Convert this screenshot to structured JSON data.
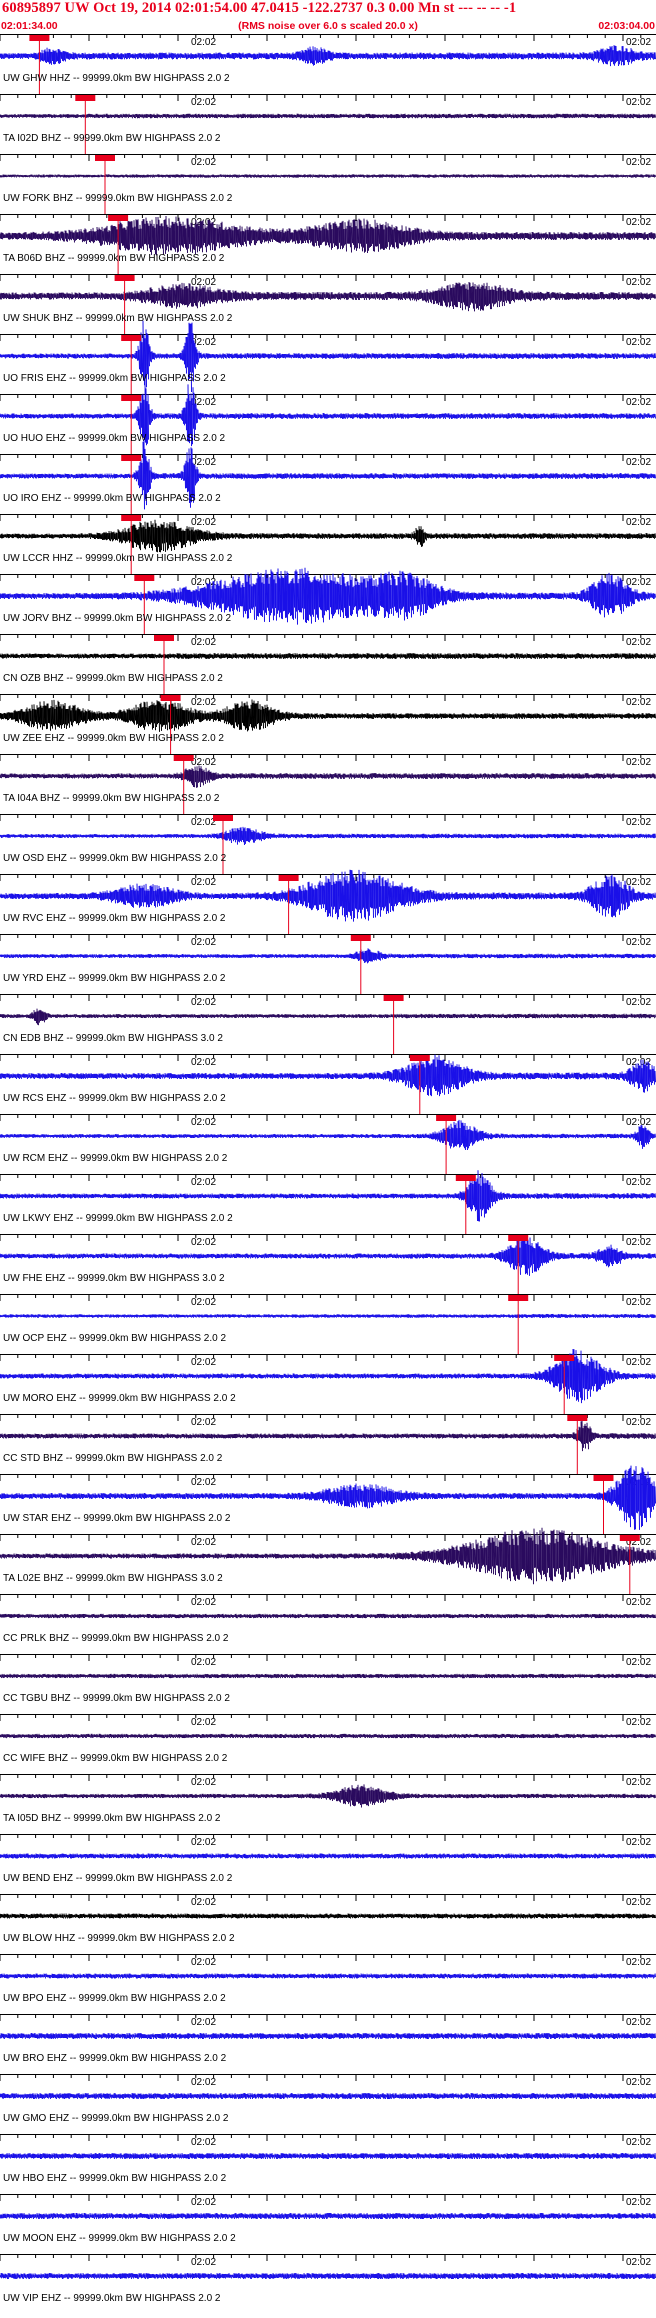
{
  "header": {
    "title": "60895897 UW Oct 19, 2014 02:01:54.00   47.0415 -122.2737  0.3 0.00 Mn st --- -- --   -1",
    "subtitle": "(RMS noise over 6.0 s scaled 20.0 x)",
    "start_time": "02:01:34.00",
    "end_time": "02:03:04.00"
  },
  "time_mark": "02:02",
  "colors": {
    "title": "#e8001c",
    "pick": "#e8001c",
    "blue": "#1a10e8",
    "purple": "#2a0a5e",
    "black": "#000000",
    "grid": "#000000"
  },
  "traces": [
    {
      "label": "UW GHW HHZ -- 99999.0km BW  HIGHPASS  2.0  2",
      "color": "blue",
      "amp": 3.0,
      "pick": 0.06,
      "events": [
        [
          0.08,
          0.02,
          5
        ],
        [
          0.48,
          0.02,
          6
        ],
        [
          0.94,
          0.03,
          7
        ]
      ]
    },
    {
      "label": "TA I02D BHZ -- 99999.0km BW  HIGHPASS  2.0  2",
      "color": "purple",
      "amp": 2.0,
      "pick": 0.13,
      "events": []
    },
    {
      "label": "UW FORK BHZ -- 99999.0km BW  HIGHPASS  2.0  2",
      "color": "purple",
      "amp": 1.5,
      "pick": 0.16,
      "events": []
    },
    {
      "label": "TA B06D BHZ -- 99999.0km BW  HIGHPASS  2.0  2",
      "color": "purple",
      "amp": 3.5,
      "pick": 0.18,
      "events": [
        [
          0.26,
          0.12,
          14
        ],
        [
          0.55,
          0.08,
          12
        ]
      ]
    },
    {
      "label": "UW SHUK BHZ -- 99999.0km BW  HIGHPASS  2.0  2",
      "color": "purple",
      "amp": 3.5,
      "pick": 0.19,
      "events": [
        [
          0.28,
          0.06,
          8
        ],
        [
          0.72,
          0.06,
          10
        ]
      ]
    },
    {
      "label": "UO FRIS EHZ -- 99999.0km BW  HIGHPASS  2.0  2",
      "color": "blue",
      "amp": 2.5,
      "pick": 0.2,
      "events": [
        [
          0.22,
          0.008,
          30
        ],
        [
          0.29,
          0.008,
          30
        ]
      ]
    },
    {
      "label": "UO HUO EHZ -- 99999.0km BW  HIGHPASS  2.0  2",
      "color": "blue",
      "amp": 2.5,
      "pick": 0.2,
      "events": [
        [
          0.22,
          0.008,
          30
        ],
        [
          0.29,
          0.008,
          30
        ]
      ]
    },
    {
      "label": "UO IRO EHZ -- 99999.0km BW  HIGHPASS  2.0  2",
      "color": "blue",
      "amp": 2.5,
      "pick": 0.2,
      "events": [
        [
          0.22,
          0.008,
          30
        ],
        [
          0.29,
          0.008,
          30
        ]
      ]
    },
    {
      "label": "UW LCCR HHZ -- 99999.0km BW  HIGHPASS  2.0  2",
      "color": "black",
      "amp": 2.5,
      "pick": 0.2,
      "events": [
        [
          0.24,
          0.06,
          12
        ],
        [
          0.64,
          0.008,
          8
        ]
      ]
    },
    {
      "label": "UW JORV BHZ -- 99999.0km BW  HIGHPASS  2.0  2",
      "color": "blue",
      "amp": 3.0,
      "pick": 0.22,
      "events": [
        [
          0.45,
          0.14,
          22
        ],
        [
          0.62,
          0.05,
          14
        ],
        [
          0.93,
          0.03,
          18
        ]
      ]
    },
    {
      "label": "CN OZB BHZ -- 99999.0km BW  HIGHPASS  2.0  2",
      "color": "black",
      "amp": 2.5,
      "pick": 0.25,
      "events": []
    },
    {
      "label": "UW ZEE EHZ -- 99999.0km BW  HIGHPASS  2.0  2",
      "color": "black",
      "amp": 2.5,
      "pick": 0.26,
      "events": [
        [
          0.08,
          0.05,
          14
        ],
        [
          0.24,
          0.05,
          14
        ],
        [
          0.38,
          0.04,
          12
        ]
      ]
    },
    {
      "label": "TA I04A BHZ -- 99999.0km BW  HIGHPASS  2.0  2",
      "color": "purple",
      "amp": 2.5,
      "pick": 0.28,
      "events": [
        [
          0.3,
          0.02,
          8
        ]
      ]
    },
    {
      "label": "UW OSD EHZ -- 99999.0km BW  HIGHPASS  2.0  2",
      "color": "blue",
      "amp": 2.0,
      "pick": 0.34,
      "events": [
        [
          0.37,
          0.03,
          6
        ]
      ]
    },
    {
      "label": "UW RVC EHZ -- 99999.0km BW  HIGHPASS  2.0  2",
      "color": "blue",
      "amp": 3.0,
      "pick": 0.44,
      "events": [
        [
          0.22,
          0.05,
          10
        ],
        [
          0.54,
          0.08,
          20
        ],
        [
          0.93,
          0.03,
          18
        ]
      ]
    },
    {
      "label": "UW YRD EHZ -- 99999.0km BW  HIGHPASS  2.0  2",
      "color": "blue",
      "amp": 2.0,
      "pick": 0.55,
      "events": [
        [
          0.56,
          0.02,
          5
        ]
      ]
    },
    {
      "label": "CN EDB BHZ -- 99999.0km BW  HIGHPASS  3.0  2",
      "color": "purple",
      "amp": 2.0,
      "pick": 0.6,
      "events": [
        [
          0.06,
          0.01,
          8
        ]
      ]
    },
    {
      "label": "UW RCS EHZ -- 99999.0km BW  HIGHPASS  2.0  2",
      "color": "blue",
      "amp": 3.0,
      "pick": 0.64,
      "events": [
        [
          0.66,
          0.05,
          16
        ],
        [
          0.98,
          0.02,
          12
        ]
      ]
    },
    {
      "label": "UW RCM EHZ -- 99999.0km BW  HIGHPASS  2.0  2",
      "color": "blue",
      "amp": 2.0,
      "pick": 0.68,
      "events": [
        [
          0.7,
          0.03,
          12
        ],
        [
          0.98,
          0.01,
          10
        ]
      ]
    },
    {
      "label": "UW LKWY EHZ -- 99999.0km BW  HIGHPASS  2.0  2",
      "color": "blue",
      "amp": 2.5,
      "pick": 0.71,
      "events": [
        [
          0.73,
          0.02,
          20
        ]
      ]
    },
    {
      "label": "UW FHE EHZ -- 99999.0km BW  HIGHPASS  3.0  2",
      "color": "blue",
      "amp": 2.5,
      "pick": 0.79,
      "events": [
        [
          0.8,
          0.03,
          16
        ],
        [
          0.93,
          0.02,
          8
        ]
      ]
    },
    {
      "label": "UW OCP EHZ -- 99999.0km BW  HIGHPASS  2.0  2",
      "color": "blue",
      "amp": 1.8,
      "pick": 0.79,
      "events": []
    },
    {
      "label": "UW MORO EHZ -- 99999.0km BW  HIGHPASS  2.0  2",
      "color": "blue",
      "amp": 2.5,
      "pick": 0.86,
      "events": [
        [
          0.88,
          0.04,
          22
        ]
      ]
    },
    {
      "label": "CC STD BHZ -- 99999.0km BW  HIGHPASS  2.0  2",
      "color": "purple",
      "amp": 2.5,
      "pick": 0.88,
      "events": [
        [
          0.89,
          0.01,
          14
        ]
      ]
    },
    {
      "label": "UW STAR EHZ -- 99999.0km BW  HIGHPASS  2.0  2",
      "color": "blue",
      "amp": 3.0,
      "pick": 0.92,
      "events": [
        [
          0.55,
          0.06,
          10
        ],
        [
          0.97,
          0.03,
          28
        ]
      ]
    },
    {
      "label": "TA L02E BHZ -- 99999.0km BW  HIGHPASS  3.0  2",
      "color": "purple",
      "amp": 2.5,
      "pick": 0.96,
      "events": [
        [
          0.82,
          0.12,
          26
        ]
      ]
    },
    {
      "label": "CC PRLK BHZ -- 99999.0km BW  HIGHPASS  2.0  2",
      "color": "purple",
      "amp": 2.2,
      "pick": null,
      "events": []
    },
    {
      "label": "CC TGBU BHZ -- 99999.0km BW  HIGHPASS  2.0  2",
      "color": "purple",
      "amp": 2.2,
      "pick": null,
      "events": []
    },
    {
      "label": "CC WIFE BHZ -- 99999.0km BW  HIGHPASS  2.0  2",
      "color": "purple",
      "amp": 2.2,
      "pick": null,
      "events": []
    },
    {
      "label": "TA I05D BHZ -- 99999.0km BW  HIGHPASS  2.0  2",
      "color": "purple",
      "amp": 2.2,
      "pick": null,
      "events": [
        [
          0.55,
          0.04,
          10
        ]
      ]
    },
    {
      "label": "UW BEND EHZ -- 99999.0km BW  HIGHPASS  2.0  2",
      "color": "blue",
      "amp": 2.5,
      "pick": null,
      "events": []
    },
    {
      "label": "UW BLOW HHZ -- 99999.0km BW  HIGHPASS  2.0  2",
      "color": "black",
      "amp": 2.5,
      "pick": null,
      "events": []
    },
    {
      "label": "UW BPO EHZ -- 99999.0km BW  HIGHPASS  2.0  2",
      "color": "blue",
      "amp": 2.5,
      "pick": null,
      "events": []
    },
    {
      "label": "UW BRO EHZ -- 99999.0km BW  HIGHPASS  2.0  2",
      "color": "blue",
      "amp": 3.0,
      "pick": null,
      "events": []
    },
    {
      "label": "UW GMO EHZ -- 99999.0km BW  HIGHPASS  2.0  2",
      "color": "blue",
      "amp": 3.0,
      "pick": null,
      "events": []
    },
    {
      "label": "UW HBO EHZ -- 99999.0km BW  HIGHPASS  2.0  2",
      "color": "blue",
      "amp": 3.0,
      "pick": null,
      "events": []
    },
    {
      "label": "UW MOON EHZ -- 99999.0km BW  HIGHPASS  2.0  2",
      "color": "blue",
      "amp": 3.0,
      "pick": null,
      "events": []
    },
    {
      "label": "UW VIP EHZ -- 99999.0km BW  HIGHPASS  2.0  2",
      "color": "blue",
      "amp": 3.0,
      "pick": null,
      "events": []
    }
  ]
}
